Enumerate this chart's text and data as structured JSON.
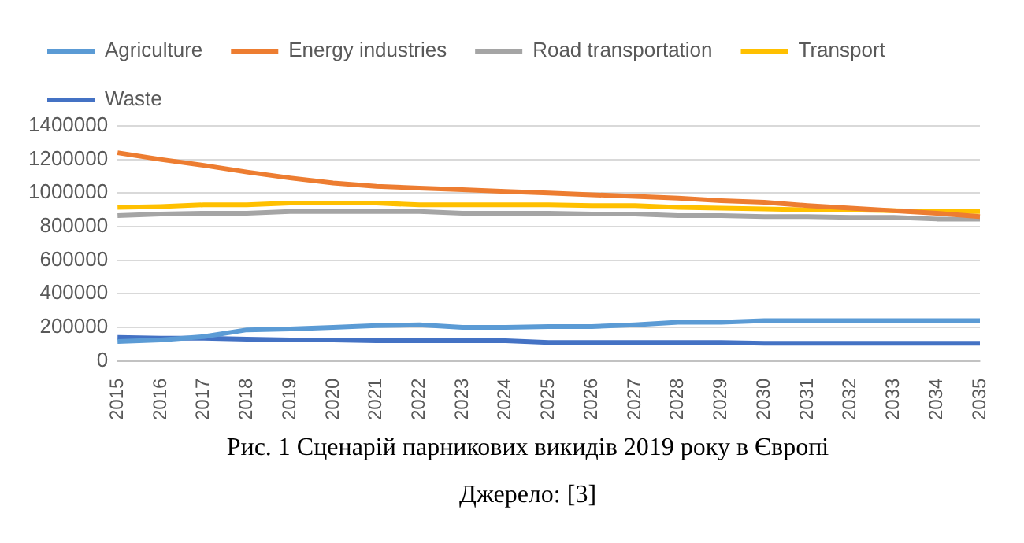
{
  "chart_data": {
    "type": "line",
    "categories": [
      "2015",
      "2016",
      "2017",
      "2018",
      "2019",
      "2020",
      "2021",
      "2022",
      "2023",
      "2024",
      "2025",
      "2026",
      "2027",
      "2028",
      "2029",
      "2030",
      "2031",
      "2032",
      "2033",
      "2034",
      "2035"
    ],
    "series": [
      {
        "name": "Agriculture",
        "color": "#5b9bd5",
        "values": [
          115000,
          125000,
          145000,
          185000,
          190000,
          200000,
          210000,
          215000,
          200000,
          200000,
          205000,
          205000,
          215000,
          230000,
          230000,
          240000,
          240000,
          240000,
          240000,
          240000,
          240000
        ]
      },
      {
        "name": "Energy industries",
        "color": "#ed7d31",
        "values": [
          1240000,
          1200000,
          1165000,
          1125000,
          1090000,
          1060000,
          1040000,
          1030000,
          1020000,
          1010000,
          1000000,
          990000,
          980000,
          970000,
          955000,
          945000,
          925000,
          910000,
          895000,
          880000,
          860000
        ]
      },
      {
        "name": "Road transportation",
        "color": "#a5a5a5",
        "values": [
          865000,
          875000,
          880000,
          880000,
          890000,
          890000,
          890000,
          890000,
          880000,
          880000,
          880000,
          875000,
          875000,
          865000,
          865000,
          860000,
          860000,
          855000,
          855000,
          845000,
          845000
        ]
      },
      {
        "name": "Transport",
        "color": "#ffc000",
        "values": [
          915000,
          920000,
          930000,
          930000,
          940000,
          940000,
          940000,
          930000,
          930000,
          930000,
          930000,
          925000,
          925000,
          915000,
          910000,
          905000,
          900000,
          900000,
          895000,
          890000,
          890000
        ]
      },
      {
        "name": "Waste",
        "color": "#4472c4",
        "values": [
          140000,
          135000,
          135000,
          130000,
          125000,
          125000,
          120000,
          120000,
          120000,
          120000,
          110000,
          110000,
          110000,
          110000,
          110000,
          105000,
          105000,
          105000,
          105000,
          105000,
          105000
        ]
      }
    ],
    "ylim": [
      0,
      1400000
    ],
    "yticks": [
      0,
      200000,
      400000,
      600000,
      800000,
      1000000,
      1200000,
      1400000
    ],
    "grid": "y",
    "legend": "top",
    "marker": "none",
    "line_style": "solid",
    "annotations": [
      "Рис. 1 Сценарій парникових викидів 2019 року в Європі",
      "Джерело: [3]"
    ]
  }
}
